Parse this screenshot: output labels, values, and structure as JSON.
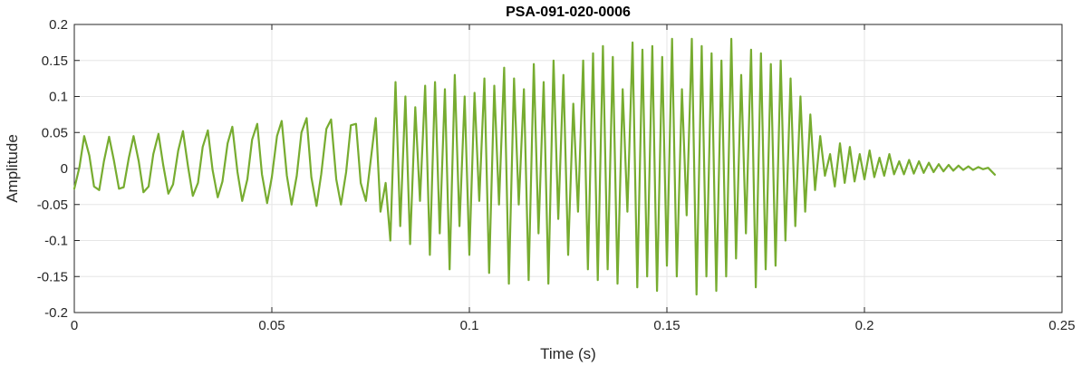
{
  "chart_data": {
    "type": "line",
    "title": "PSA-091-020-0006",
    "xlabel": "Time (s)",
    "ylabel": "Amplitude",
    "xlim": [
      0,
      0.25
    ],
    "ylim": [
      -0.2,
      0.2
    ],
    "grid": true,
    "legend": "none",
    "x_ticks": [
      {
        "value": 0,
        "label": "0"
      },
      {
        "value": 0.05,
        "label": "0.05"
      },
      {
        "value": 0.1,
        "label": "0.1"
      },
      {
        "value": 0.15,
        "label": "0.15"
      },
      {
        "value": 0.2,
        "label": "0.2"
      },
      {
        "value": 0.25,
        "label": "0.25"
      }
    ],
    "y_ticks": [
      {
        "value": 0.2,
        "label": "0.2"
      },
      {
        "value": 0.15,
        "label": "0.15"
      },
      {
        "value": 0.1,
        "label": "0.1"
      },
      {
        "value": 0.05,
        "label": "0.05"
      },
      {
        "value": 0,
        "label": "0"
      },
      {
        "value": -0.05,
        "label": "-0.05"
      },
      {
        "value": -0.1,
        "label": "-0.1"
      },
      {
        "value": -0.15,
        "label": "-0.15"
      },
      {
        "value": -0.2,
        "label": "-0.2"
      }
    ],
    "colors": {
      "series": "#77AC30",
      "grid": "#e6e6e6",
      "axes": "#262626"
    },
    "series": [
      {
        "x": [
          0.0,
          0.0013,
          0.0025,
          0.0038,
          0.005,
          0.0063,
          0.0075,
          0.0088,
          0.01,
          0.0113,
          0.0125,
          0.0138,
          0.015,
          0.0163,
          0.0175,
          0.0188,
          0.02,
          0.0213,
          0.0225,
          0.0238,
          0.025,
          0.0263,
          0.0275,
          0.0288,
          0.03,
          0.0313,
          0.0325,
          0.0338,
          0.035,
          0.0363,
          0.0375,
          0.0388,
          0.04,
          0.0413,
          0.0425,
          0.0438,
          0.045,
          0.0463,
          0.0475,
          0.0488,
          0.05,
          0.0513,
          0.0525,
          0.0538,
          0.055,
          0.0563,
          0.0575,
          0.0588,
          0.06,
          0.0613,
          0.0625,
          0.0638,
          0.065,
          0.0663,
          0.0675,
          0.0688,
          0.07,
          0.0713,
          0.0725,
          0.0738,
          0.075,
          0.0763,
          0.0775,
          0.0788,
          0.08,
          0.0813,
          0.0825,
          0.0838,
          0.085,
          0.0863,
          0.0875,
          0.0888,
          0.09,
          0.0913,
          0.0925,
          0.0938,
          0.095,
          0.0963,
          0.0975,
          0.0988,
          0.1,
          0.1013,
          0.1025,
          0.1038,
          0.105,
          0.1063,
          0.1075,
          0.1088,
          0.11,
          0.1113,
          0.1125,
          0.1138,
          0.115,
          0.1163,
          0.1175,
          0.1188,
          0.12,
          0.1213,
          0.1225,
          0.1238,
          0.125,
          0.1263,
          0.1275,
          0.1288,
          0.13,
          0.1313,
          0.1325,
          0.1338,
          0.135,
          0.1363,
          0.1375,
          0.1388,
          0.14,
          0.1413,
          0.1425,
          0.1438,
          0.145,
          0.1463,
          0.1475,
          0.1488,
          0.15,
          0.1513,
          0.1525,
          0.1538,
          0.155,
          0.1563,
          0.1575,
          0.1588,
          0.16,
          0.1613,
          0.1625,
          0.1638,
          0.165,
          0.1663,
          0.1675,
          0.1688,
          0.17,
          0.1713,
          0.1725,
          0.1738,
          0.175,
          0.1763,
          0.1775,
          0.1788,
          0.18,
          0.1813,
          0.1825,
          0.1838,
          0.185,
          0.1863,
          0.1875,
          0.1888,
          0.19,
          0.1913,
          0.1925,
          0.1938,
          0.195,
          0.1963,
          0.1975,
          0.1988,
          0.2,
          0.2013,
          0.2025,
          0.2038,
          0.205,
          0.2063,
          0.2075,
          0.2088,
          0.21,
          0.2113,
          0.2125,
          0.2138,
          0.215,
          0.2163,
          0.2175,
          0.2188,
          0.22,
          0.2213,
          0.2225,
          0.2238,
          0.225,
          0.2263,
          0.2275,
          0.2288,
          0.23,
          0.2313,
          0.233
        ],
        "y": [
          -0.028,
          0.002,
          0.045,
          0.018,
          -0.025,
          -0.03,
          0.01,
          0.044,
          0.012,
          -0.028,
          -0.026,
          0.015,
          0.045,
          0.01,
          -0.033,
          -0.025,
          0.02,
          0.048,
          0.005,
          -0.035,
          -0.022,
          0.025,
          0.052,
          0.002,
          -0.038,
          -0.02,
          0.03,
          0.053,
          -0.002,
          -0.04,
          -0.018,
          0.035,
          0.058,
          -0.005,
          -0.045,
          -0.015,
          0.04,
          0.062,
          -0.008,
          -0.048,
          -0.012,
          0.045,
          0.066,
          -0.01,
          -0.05,
          -0.01,
          0.05,
          0.07,
          -0.012,
          -0.052,
          -0.008,
          0.055,
          0.068,
          -0.015,
          -0.05,
          -0.005,
          0.06,
          0.062,
          -0.02,
          -0.045,
          0.01,
          0.07,
          -0.06,
          -0.02,
          -0.1,
          0.12,
          -0.08,
          0.1,
          -0.105,
          0.085,
          -0.045,
          0.115,
          -0.12,
          0.12,
          -0.09,
          0.11,
          -0.14,
          0.13,
          -0.08,
          0.1,
          -0.12,
          0.105,
          -0.045,
          0.125,
          -0.145,
          0.115,
          -0.05,
          0.14,
          -0.16,
          0.125,
          -0.05,
          0.11,
          -0.155,
          0.145,
          -0.09,
          0.12,
          -0.16,
          0.15,
          -0.07,
          0.13,
          -0.12,
          0.09,
          -0.06,
          0.15,
          -0.14,
          0.16,
          -0.155,
          0.17,
          -0.14,
          0.155,
          -0.16,
          0.11,
          -0.06,
          0.175,
          -0.165,
          0.165,
          -0.15,
          0.17,
          -0.17,
          0.155,
          -0.135,
          0.18,
          -0.15,
          0.11,
          -0.065,
          0.18,
          -0.175,
          0.17,
          -0.15,
          0.16,
          -0.17,
          0.15,
          -0.15,
          0.18,
          -0.125,
          0.13,
          -0.09,
          0.165,
          -0.165,
          0.16,
          -0.14,
          0.145,
          -0.135,
          0.15,
          -0.1,
          0.125,
          -0.08,
          0.1,
          -0.06,
          0.075,
          -0.03,
          0.045,
          -0.01,
          0.02,
          -0.025,
          0.035,
          -0.02,
          0.03,
          -0.018,
          0.02,
          -0.015,
          0.025,
          -0.012,
          0.015,
          -0.01,
          0.02,
          -0.008,
          0.01,
          -0.008,
          0.012,
          -0.007,
          0.01,
          -0.006,
          0.008,
          -0.005,
          0.006,
          -0.004,
          0.005,
          -0.003,
          0.004,
          -0.002,
          0.003,
          -0.002,
          0.002,
          -0.001,
          0.001,
          -0.0085
        ]
      }
    ]
  }
}
